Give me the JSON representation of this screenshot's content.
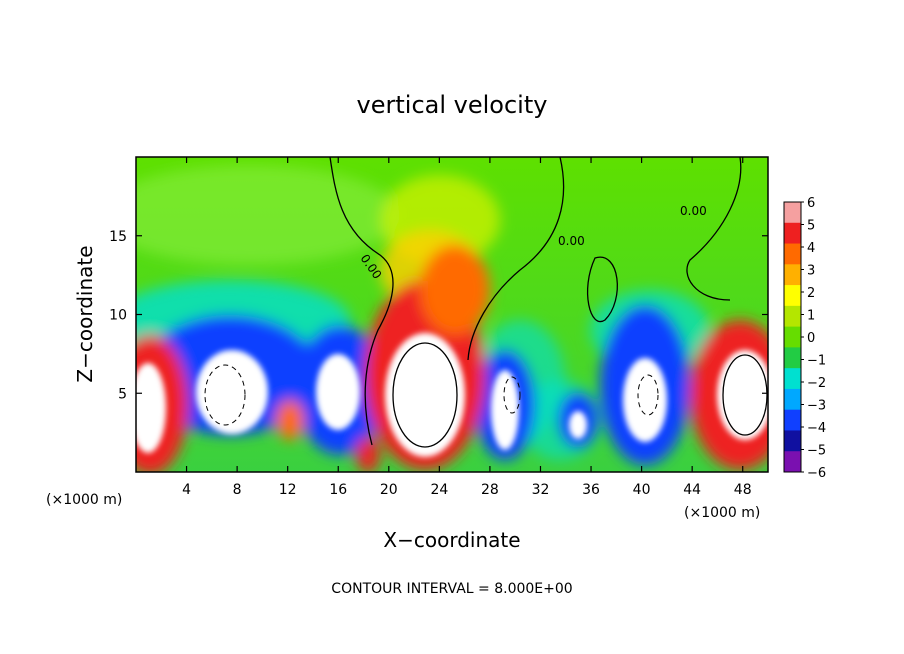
{
  "chart_data": {
    "type": "heatmap",
    "title": "vertical velocity",
    "xlabel": "X−coordinate",
    "ylabel": "Z−coordinate",
    "x_unit_left": "(×1000 m)",
    "x_unit_right": "(×1000 m)",
    "xlim": [
      0,
      50
    ],
    "ylim": [
      0,
      20
    ],
    "x_ticks": [
      "4",
      "8",
      "12",
      "16",
      "20",
      "24",
      "28",
      "32",
      "36",
      "40",
      "44",
      "48"
    ],
    "y_ticks": [
      "5",
      "10",
      "15"
    ],
    "colorbar": {
      "labels": [
        "6",
        "5",
        "4",
        "3",
        "2",
        "1",
        "0",
        "−1",
        "−2",
        "−3",
        "−4",
        "−5",
        "−6"
      ],
      "colors": [
        "#f5a0a0",
        "#ee2020",
        "#ff6a00",
        "#ffb000",
        "#ffff00",
        "#b4e600",
        "#66dd00",
        "#22cc44",
        "#00e0d0",
        "#00a8ff",
        "#1040ff",
        "#1010a0",
        "#7a10b0"
      ],
      "range": [
        -6,
        6
      ]
    },
    "contour_label": "0.00",
    "footer": "CONTOUR INTERVAL = 8.000E+00",
    "grid": false
  }
}
